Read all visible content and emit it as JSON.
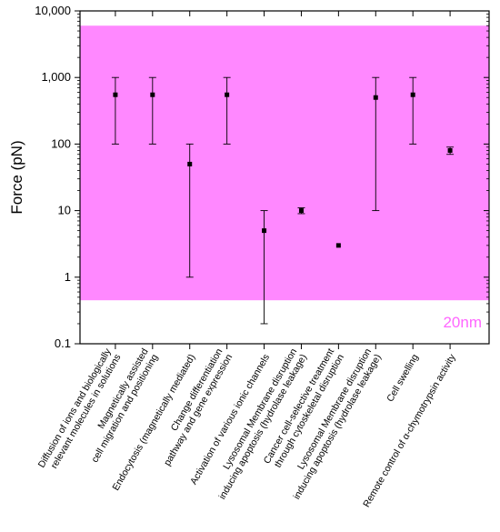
{
  "chart_data": {
    "type": "scatter",
    "ylabel": "Force (pN)",
    "yscale": "log",
    "ylim": [
      0.1,
      10000
    ],
    "y_ticks": [
      "0.1",
      "1",
      "10",
      "100",
      "1,000",
      "10,000"
    ],
    "band": {
      "label": "20nm",
      "y_range": [
        0.45,
        6000
      ],
      "color": "#ff88ff",
      "label_color": "#ff66ff"
    },
    "point_color": "#000000",
    "points": [
      {
        "label": "Diffusion of ions and biologically\nrelevant molecules in solutions",
        "y": 550,
        "y_low": 100,
        "y_high": 1000
      },
      {
        "label": "Magnetically assisted\ncell migration and positioning",
        "y": 550,
        "y_low": 100,
        "y_high": 1000
      },
      {
        "label": "Endocytosis (magnetically mediated)",
        "y": 50,
        "y_low": 1,
        "y_high": 100
      },
      {
        "label": "Change differentiation\npathway and gene expression",
        "y": 550,
        "y_low": 100,
        "y_high": 1000
      },
      {
        "label": "Activation of various ionic channels",
        "y": 5,
        "y_low": 0.2,
        "y_high": 10
      },
      {
        "label": "Lysosomal Membrane disruption\ninducing apoptosis (hydrolase leakage)",
        "y": 10,
        "y_low": 9,
        "y_high": 11
      },
      {
        "label": "Cancer cell-selective treatment\nthrough cytoskeletal disruption",
        "y": 3,
        "y_low": 3,
        "y_high": 3
      },
      {
        "label": "Lysosomal Membrane disruption\ninducing apoptosis (hydrolase leakage)",
        "y": 500,
        "y_low": 10,
        "y_high": 1000
      },
      {
        "label": "Cell swelling",
        "y": 550,
        "y_low": 100,
        "y_high": 1000
      },
      {
        "label": "Remote control of α-chymotrypsin activity",
        "y": 80,
        "y_low": 70,
        "y_high": 90
      }
    ]
  }
}
